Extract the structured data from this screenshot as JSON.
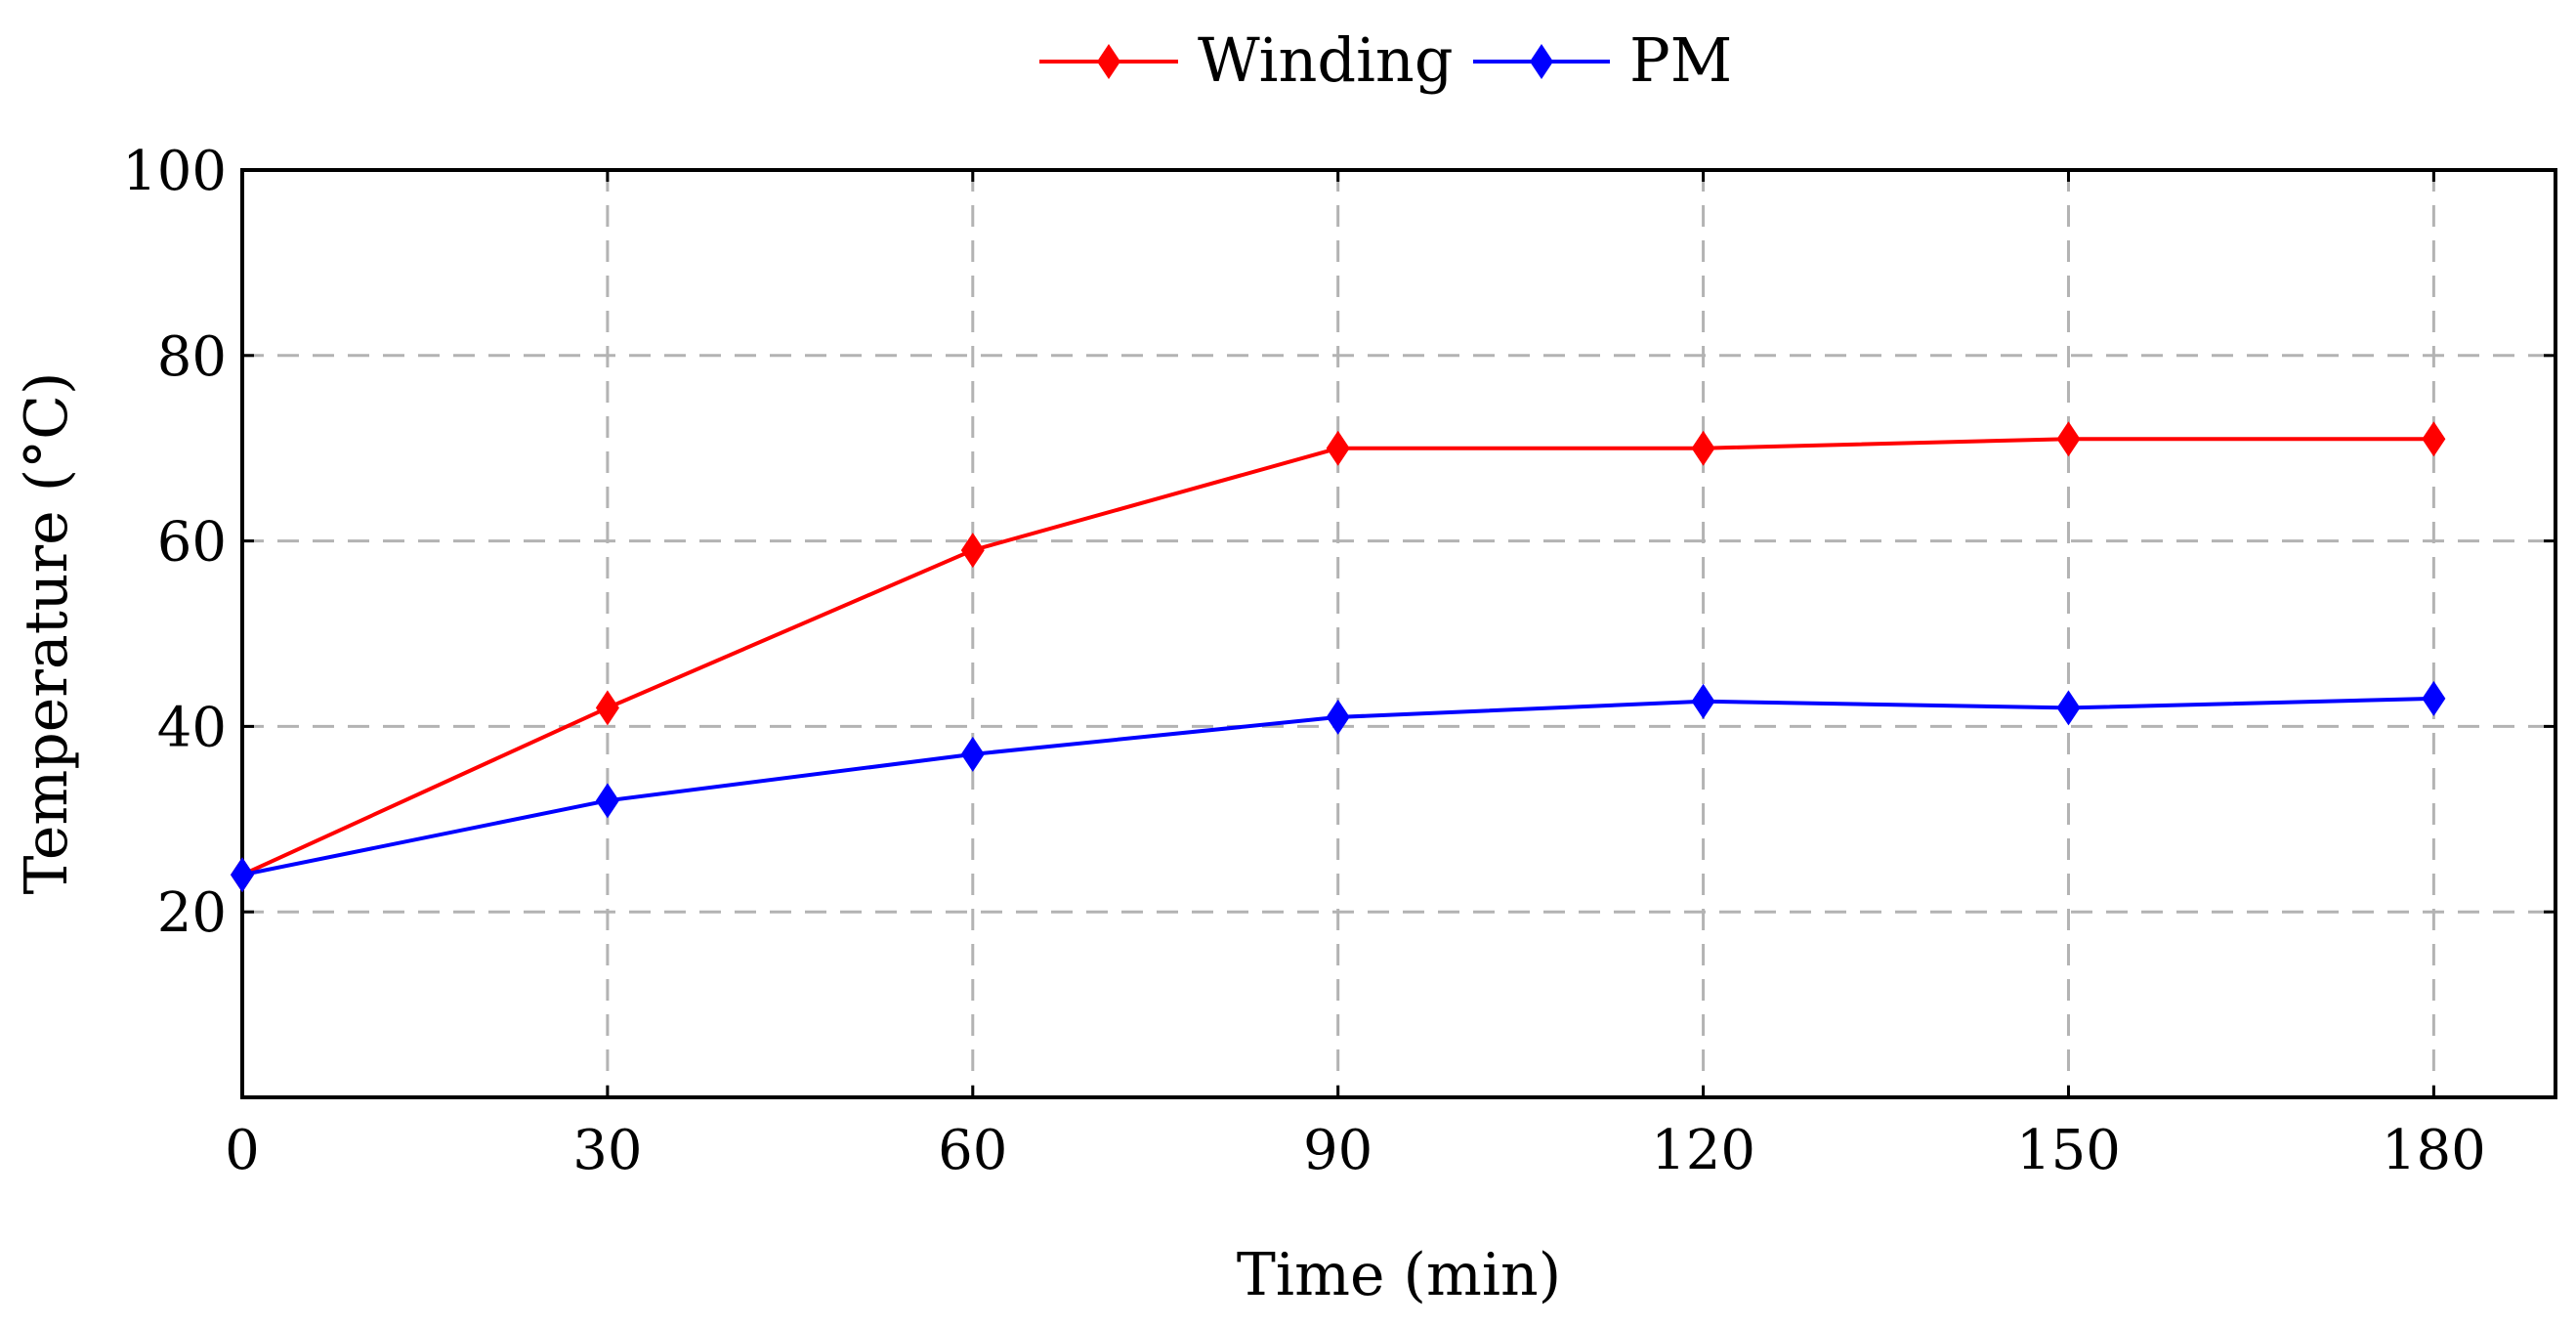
{
  "chart_data": {
    "type": "line",
    "title": "",
    "xlabel": "Time (min)",
    "ylabel": "Temperature (°C)",
    "x": [
      0,
      30,
      60,
      90,
      120,
      150,
      180
    ],
    "xlim": [
      0,
      190
    ],
    "ylim": [
      0,
      100
    ],
    "xticks": [
      0,
      30,
      60,
      90,
      120,
      150,
      180
    ],
    "xtick_labels": [
      "0",
      "30",
      "60",
      "90",
      "120",
      "150",
      "180"
    ],
    "yticks": [
      20,
      40,
      60,
      80,
      100
    ],
    "ytick_labels": [
      "20",
      "40",
      "60",
      "80",
      "100"
    ],
    "grid": true,
    "legend_position": "top-center",
    "series": [
      {
        "name": "Winding",
        "color": "#ff0000",
        "marker": "diamond",
        "values": [
          24,
          42,
          59,
          70,
          70,
          71,
          71
        ]
      },
      {
        "name": "PM",
        "color": "#0000ff",
        "marker": "diamond",
        "values": [
          24,
          32,
          37,
          41,
          42.7,
          42,
          43
        ]
      }
    ]
  }
}
